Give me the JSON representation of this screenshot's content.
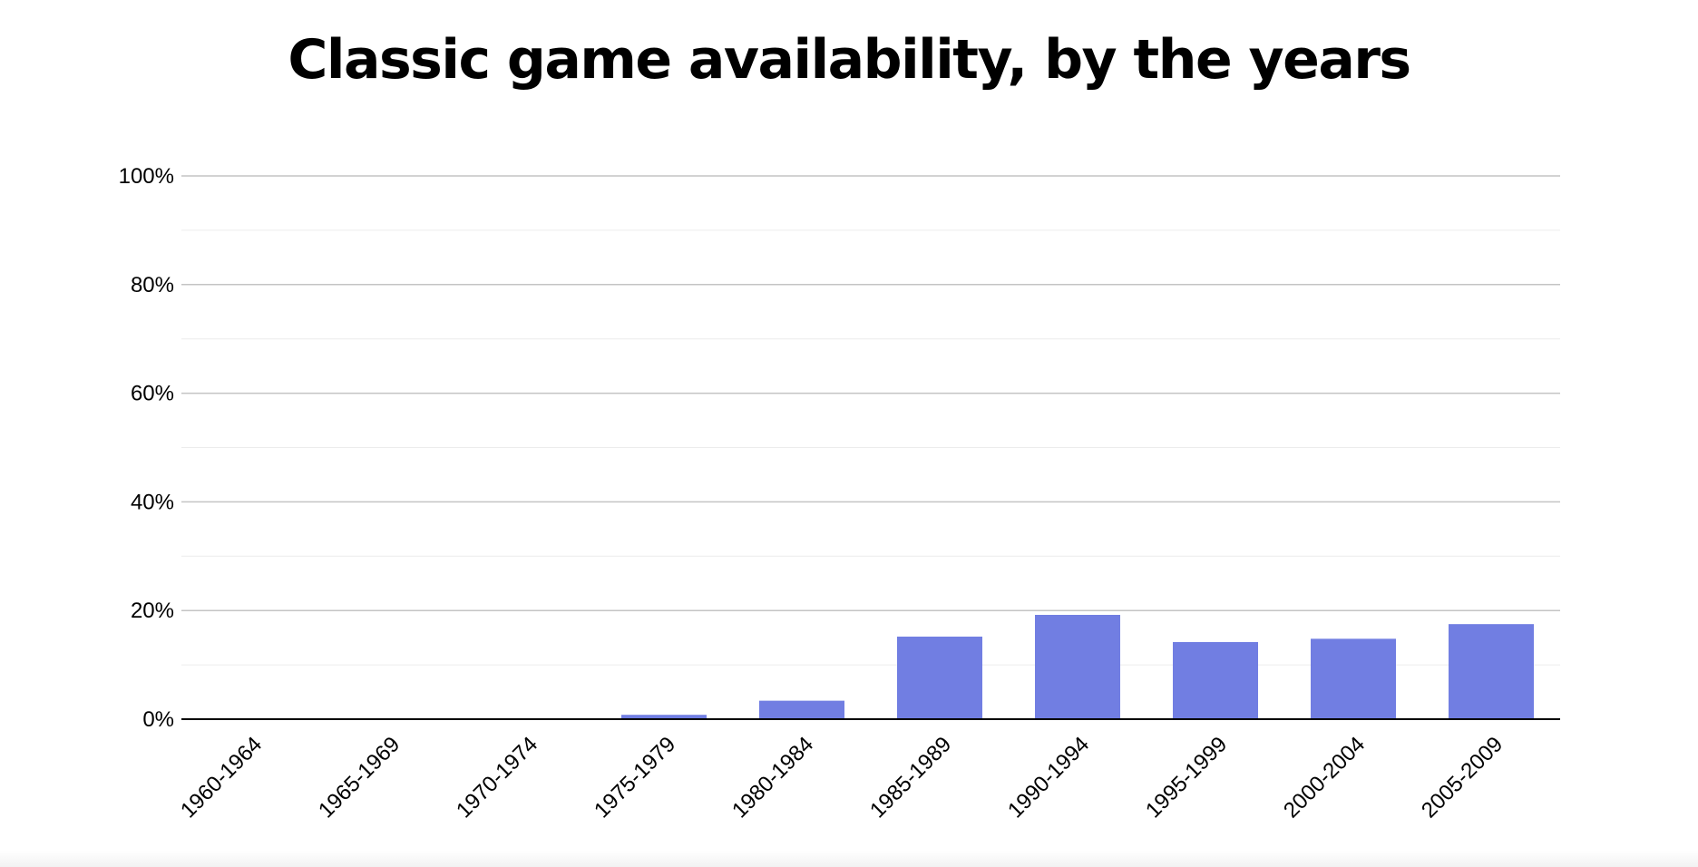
{
  "chart_data": {
    "type": "bar",
    "title": "Classic game availability, by the years",
    "xlabel": "",
    "ylabel": "",
    "categories": [
      "1960-1964",
      "1965-1969",
      "1970-1974",
      "1975-1979",
      "1980-1984",
      "1985-1989",
      "1990-1994",
      "1995-1999",
      "2000-2004",
      "2005-2009"
    ],
    "values": [
      0,
      0,
      0,
      0.8,
      3.4,
      15.2,
      19.2,
      14.2,
      14.8,
      17.5
    ],
    "ylim": [
      0,
      100
    ],
    "yticks": [
      0,
      20,
      40,
      60,
      80,
      100
    ],
    "ytick_labels": [
      "0%",
      "20%",
      "40%",
      "60%",
      "80%",
      "100%"
    ],
    "grid": true,
    "legend": "none",
    "bar_color": "#717ee2"
  }
}
